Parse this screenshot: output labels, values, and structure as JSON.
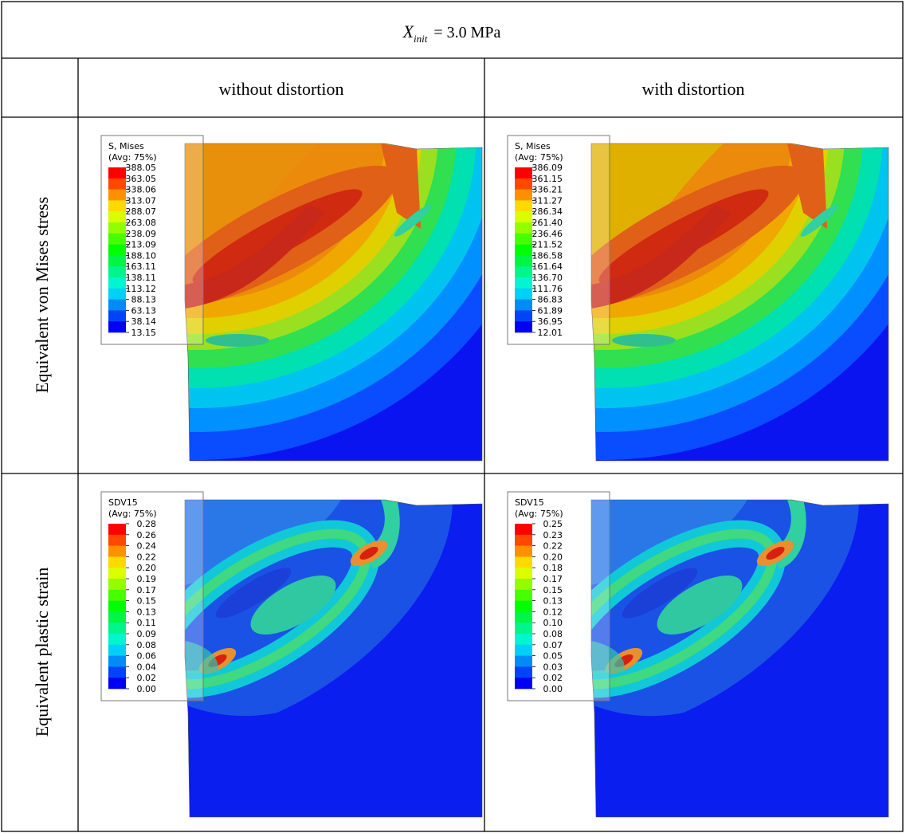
{
  "table": {
    "title": {
      "symbol": "X",
      "subscript": "init",
      "rest": "= 3.0 MPa"
    },
    "columns": [
      "without distortion",
      "with distortion"
    ],
    "rows": [
      {
        "label": "Equivalent von Mises stress",
        "panels": [
          {
            "legend_title": "S, Mises",
            "legend_subtitle": "(Avg: 75%)",
            "legend_values": [
              "388.05",
              "363.05",
              "338.06",
              "313.07",
              "288.07",
              "263.08",
              "238.09",
              "213.09",
              "188.10",
              "163.11",
              "138.11",
              "113.12",
              "88.13",
              "63.13",
              "38.14",
              "13.15"
            ]
          },
          {
            "legend_title": "S, Mises",
            "legend_subtitle": "(Avg: 75%)",
            "legend_values": [
              "386.09",
              "361.15",
              "336.21",
              "311.27",
              "286.34",
              "261.40",
              "236.46",
              "211.52",
              "186.58",
              "161.64",
              "136.70",
              "111.76",
              "86.83",
              "61.89",
              "36.95",
              "12.01"
            ]
          }
        ]
      },
      {
        "label": "Equivalent plastic strain",
        "panels": [
          {
            "legend_title": "SDV15",
            "legend_subtitle": "(Avg: 75%)",
            "legend_values": [
              "0.28",
              "0.26",
              "0.24",
              "0.22",
              "0.20",
              "0.19",
              "0.17",
              "0.15",
              "0.13",
              "0.11",
              "0.09",
              "0.08",
              "0.06",
              "0.04",
              "0.02",
              "0.00"
            ]
          },
          {
            "legend_title": "SDV15",
            "legend_subtitle": "(Avg: 75%)",
            "legend_values": [
              "0.25",
              "0.23",
              "0.22",
              "0.20",
              "0.18",
              "0.17",
              "0.15",
              "0.13",
              "0.12",
              "0.10",
              "0.08",
              "0.07",
              "0.05",
              "0.03",
              "0.02",
              "0.00"
            ]
          }
        ]
      }
    ]
  }
}
